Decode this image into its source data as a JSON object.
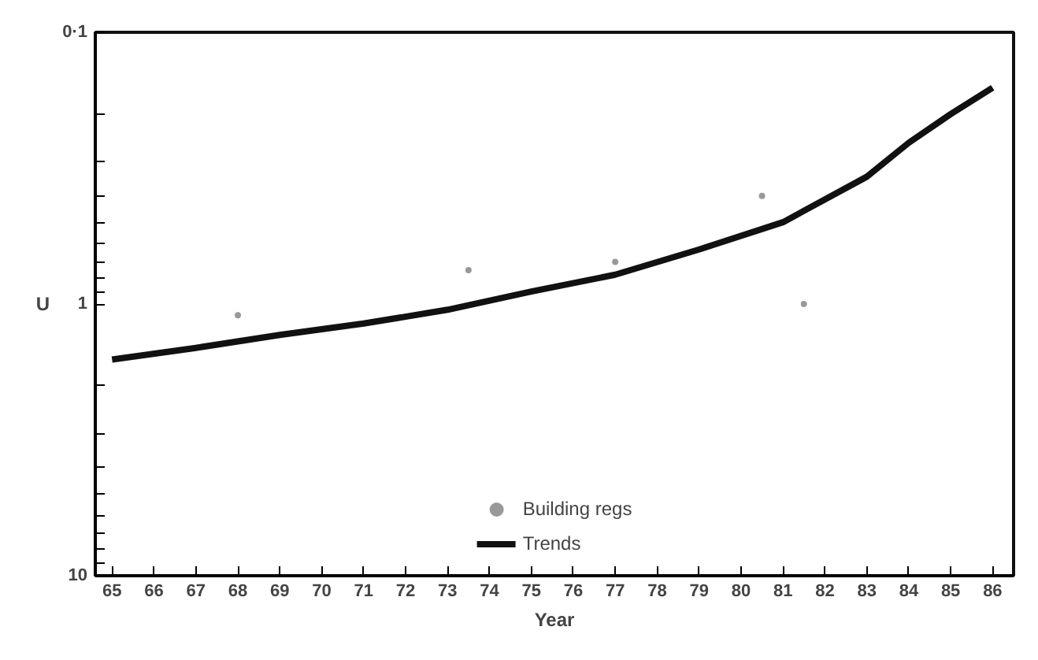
{
  "chart_data": {
    "type": "line",
    "xlabel": "Year",
    "ylabel": "U",
    "x": [
      65,
      67,
      69,
      71,
      73,
      75,
      77,
      79,
      81,
      83,
      84,
      85,
      86
    ],
    "series": [
      {
        "name": "Building regs",
        "type": "scatter",
        "color": "#999999",
        "marker": "circle",
        "x": [
          68,
          73.5,
          77,
          80.5,
          81.5
        ],
        "values": [
          1.1,
          0.75,
          0.7,
          0.4,
          1.0
        ]
      },
      {
        "name": "Trends",
        "color": "#111111",
        "values": [
          1.6,
          1.45,
          1.3,
          1.18,
          1.05,
          0.9,
          0.78,
          0.63,
          0.5,
          0.34,
          0.255,
          0.2,
          0.16
        ]
      }
    ],
    "log": "y",
    "xlim": [
      64.6,
      86.5
    ],
    "ylim": [
      10,
      0.1
    ],
    "xticks": [
      65,
      66,
      67,
      68,
      69,
      70,
      71,
      72,
      73,
      74,
      75,
      76,
      77,
      78,
      79,
      80,
      81,
      82,
      83,
      84,
      85,
      86
    ],
    "yticks": [
      {
        "value": 0.1,
        "label": "0·1"
      },
      {
        "value": 0.2,
        "label": null
      },
      {
        "value": 0.3,
        "label": null
      },
      {
        "value": 0.4,
        "label": null
      },
      {
        "value": 0.5,
        "label": null
      },
      {
        "value": 0.6,
        "label": null
      },
      {
        "value": 0.7,
        "label": null
      },
      {
        "value": 0.8,
        "label": null
      },
      {
        "value": 0.9,
        "label": null
      },
      1,
      {
        "value": 2,
        "label": null
      },
      {
        "value": 3,
        "label": null
      },
      {
        "value": 4,
        "label": null
      },
      {
        "value": 5,
        "label": null
      },
      {
        "value": 6,
        "label": null
      },
      {
        "value": 7,
        "label": null
      },
      {
        "value": 8,
        "label": null
      },
      {
        "value": 9,
        "label": null
      },
      10
    ],
    "grid": false,
    "legend": "bottom"
  }
}
